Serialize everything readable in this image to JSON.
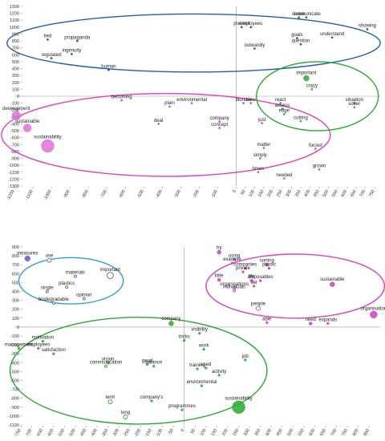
{
  "chart_data": [
    {
      "type": "scatter",
      "xlim": [
        -1200,
        780
      ],
      "ylim": [
        -1300,
        1300
      ],
      "xticks": [
        -1200,
        -1100,
        -1000,
        -900,
        -800,
        -700,
        -600,
        -500,
        -400,
        -300,
        -200,
        -100,
        0,
        50,
        100,
        150,
        200,
        250,
        300,
        350,
        400,
        450,
        500,
        550,
        600,
        650,
        700,
        750
      ],
      "yticks": [
        1300,
        1200,
        1100,
        1000,
        900,
        800,
        700,
        600,
        500,
        400,
        300,
        200,
        100,
        0,
        -100,
        -200,
        -300,
        -400,
        -500,
        -600,
        -700,
        -800,
        -900,
        -1000,
        -1100,
        -1200,
        -1300
      ],
      "grid": false,
      "clusters": [
        {
          "color": "#1f5faa",
          "cx": -230,
          "cy": 770,
          "rx": 1010,
          "ry": 420
        },
        {
          "color": "#e040c0",
          "cx": -380,
          "cy": -560,
          "rx": 890,
          "ry": 600
        },
        {
          "color": "#2aa830",
          "cx": 440,
          "cy": 0,
          "rx": 330,
          "ry": 500
        }
      ],
      "points": [
        {
          "label": "tied",
          "x": -1020,
          "y": 820,
          "r": 1.2,
          "color": "#1f3f8f"
        },
        {
          "label": "regulated",
          "x": -1000,
          "y": 550,
          "r": 1.2,
          "color": "#1f3f8f"
        },
        {
          "label": "propaganda",
          "x": -860,
          "y": 800,
          "r": 1.2,
          "color": "#1f3f8f"
        },
        {
          "label": "ingenuity",
          "x": -890,
          "y": 610,
          "r": 1.2,
          "color": "#1f3f8f"
        },
        {
          "label": "human",
          "x": -690,
          "y": 380,
          "r": 1.2,
          "color": "#1f3f8f"
        },
        {
          "label": "present",
          "x": 30,
          "y": 1000,
          "r": 1.2,
          "color": "#1f3f8f"
        },
        {
          "label": "employees",
          "x": 80,
          "y": 1000,
          "r": 1.2,
          "color": "#1f3f8f"
        },
        {
          "label": "outwardly",
          "x": 100,
          "y": 690,
          "r": 1.2,
          "color": "#1f3f8f"
        },
        {
          "label": "issue",
          "x": 340,
          "y": 1140,
          "r": 1.2,
          "color": "#1f3f8f"
        },
        {
          "label": "communicate",
          "x": 380,
          "y": 1140,
          "r": 1.2,
          "color": "#1f3f8f"
        },
        {
          "label": "goals",
          "x": 330,
          "y": 840,
          "r": 1.2,
          "color": "#1f3f8f"
        },
        {
          "label": "question",
          "x": 350,
          "y": 750,
          "r": 1.2,
          "color": "#1f3f8f"
        },
        {
          "label": "understand",
          "x": 520,
          "y": 850,
          "r": 1.2,
          "color": "#1f3f8f"
        },
        {
          "label": "showing",
          "x": 710,
          "y": 970,
          "r": 1.2,
          "color": "#1f3f8f"
        },
        {
          "label": "becoming",
          "x": -620,
          "y": -60,
          "r": 1.2,
          "color": "#d23cc0"
        },
        {
          "label": "plain",
          "x": -360,
          "y": -150,
          "r": 1.2,
          "color": "#d23cc0"
        },
        {
          "label": "environmental",
          "x": -240,
          "y": -100,
          "r": 1.2,
          "color": "#d23cc0"
        },
        {
          "label": "deal",
          "x": -420,
          "y": -400,
          "r": 1.2,
          "color": "#d23cc0"
        },
        {
          "label": "company",
          "x": -90,
          "y": -370,
          "r": 1.2,
          "color": "#d23cc0"
        },
        {
          "label": "concept",
          "x": -90,
          "y": -460,
          "r": 1.2,
          "color": "#d23cc0"
        },
        {
          "label": "blunder",
          "x": 40,
          "y": -100,
          "r": 1.2,
          "color": "#d23cc0"
        },
        {
          "label": "view",
          "x": 80,
          "y": -100,
          "r": 1.2,
          "color": "#d23cc0"
        },
        {
          "label": "just",
          "x": 140,
          "y": -390,
          "r": 1.2,
          "color": "#d23cc0"
        },
        {
          "label": "matter",
          "x": 150,
          "y": -750,
          "r": 1.2,
          "color": "#d23cc0"
        },
        {
          "label": "simply",
          "x": 130,
          "y": -900,
          "r": 1.2,
          "color": "#d23cc0"
        },
        {
          "label": "times",
          "x": 120,
          "y": -1100,
          "r": 1.2,
          "color": "#d23cc0"
        },
        {
          "label": "needed",
          "x": 260,
          "y": -1190,
          "r": 1.2,
          "color": "#d23cc0"
        },
        {
          "label": "forced",
          "x": 430,
          "y": -760,
          "r": 1.2,
          "color": "#d23cc0"
        },
        {
          "label": "grown",
          "x": 450,
          "y": -1060,
          "r": 1.2,
          "color": "#d23cc0"
        },
        {
          "label": "development",
          "x": -1190,
          "y": -280,
          "r": 5.5,
          "color": "#e070d8"
        },
        {
          "label": "sustainable",
          "x": -1130,
          "y": -460,
          "r": 5,
          "color": "#e070d8"
        },
        {
          "label": "sustainability",
          "x": -1020,
          "y": -720,
          "r": 8,
          "color": "#e070d8"
        },
        {
          "label": "important",
          "x": 380,
          "y": 260,
          "r": 3.5,
          "color": "#2aa830"
        },
        {
          "label": "crazy",
          "x": 410,
          "y": 100,
          "r": 1.2,
          "color": "#2aa830"
        },
        {
          "label": "react",
          "x": 240,
          "y": -100,
          "r": 1.2,
          "color": "#2aa830"
        },
        {
          "label": "assess",
          "x": 250,
          "y": -180,
          "r": 1.2,
          "color": "#2aa830"
        },
        {
          "label": "edge",
          "x": 260,
          "y": -260,
          "r": 1.2,
          "color": "#2aa830"
        },
        {
          "label": "cutting",
          "x": 350,
          "y": -360,
          "r": 1.2,
          "color": "#2aa830"
        },
        {
          "label": "situation",
          "x": 640,
          "y": -100,
          "r": 1.2,
          "color": "#2aa830"
        },
        {
          "label": "sober",
          "x": 640,
          "y": -160,
          "r": 1.2,
          "color": "#2aa830"
        }
      ]
    },
    {
      "type": "scatter",
      "xlim": [
        -780,
        900
      ],
      "ylim": [
        -1100,
        900
      ],
      "xticks": [
        -750,
        -700,
        -650,
        -600,
        -550,
        -500,
        -450,
        -400,
        -350,
        -300,
        -250,
        -200,
        -150,
        -100,
        -50,
        0,
        50,
        100,
        150,
        200,
        250,
        300,
        350,
        400,
        450,
        500,
        550,
        600,
        650,
        700,
        750,
        800,
        850
      ],
      "yticks": [
        900,
        800,
        700,
        600,
        500,
        400,
        300,
        200,
        100,
        0,
        -100,
        -200,
        -300,
        -400,
        -500,
        -600,
        -700,
        -800,
        -900,
        -1000,
        -1100
      ],
      "grid": false,
      "clusters": [
        {
          "color": "#2aa0d8",
          "cx": -520,
          "cy": 520,
          "rx": 240,
          "ry": 260
        },
        {
          "color": "#e040c0",
          "cx": 510,
          "cy": 460,
          "rx": 410,
          "ry": 360
        },
        {
          "color": "#2aa830",
          "cx": -210,
          "cy": -490,
          "rx": 590,
          "ry": 600
        }
      ],
      "points": [
        {
          "label": "measures",
          "x": -720,
          "y": 770,
          "r": 3.5,
          "color": "#6a5ad0",
          "hollow": false
        },
        {
          "label": "use",
          "x": -620,
          "y": 750,
          "r": 2.5,
          "color": "#6a5ad0",
          "hollow": true
        },
        {
          "label": "materials",
          "x": -500,
          "y": 570,
          "r": 1.5,
          "color": "#6a5ad0",
          "hollow": true
        },
        {
          "label": "important",
          "x": -340,
          "y": 580,
          "r": 4,
          "color": "#6a5ad0",
          "hollow": true
        },
        {
          "label": "plastics",
          "x": -540,
          "y": 450,
          "r": 1.5,
          "color": "#6a5ad0",
          "hollow": true
        },
        {
          "label": "single",
          "x": -630,
          "y": 400,
          "r": 1.5,
          "color": "#6a5ad0",
          "hollow": true
        },
        {
          "label": "opinion",
          "x": -460,
          "y": 320,
          "r": 1.5,
          "color": "#6a5ad0",
          "hollow": true
        },
        {
          "label": "biodegradable",
          "x": -600,
          "y": 270,
          "r": 1.5,
          "color": "#6a5ad0",
          "hollow": true
        },
        {
          "label": "try",
          "x": 160,
          "y": 840,
          "r": 2.5,
          "color": "#d23cc0",
          "hollow": false
        },
        {
          "label": "using",
          "x": 230,
          "y": 760,
          "r": 1.5,
          "color": "#d23cc0",
          "hollow": false
        },
        {
          "label": "example",
          "x": 220,
          "y": 720,
          "r": 1.5,
          "color": "#d23cc0",
          "hollow": false
        },
        {
          "label": "companies",
          "x": 280,
          "y": 660,
          "r": 1.5,
          "color": "#d23cc0",
          "hollow": false
        },
        {
          "label": "private",
          "x": 270,
          "y": 620,
          "r": 1.5,
          "color": "#d23cc0",
          "hollow": false
        },
        {
          "label": "sorting",
          "x": 380,
          "y": 700,
          "r": 2,
          "color": "#d23cc0",
          "hollow": false
        },
        {
          "label": "plastic",
          "x": 390,
          "y": 660,
          "r": 1.5,
          "color": "#d23cc0",
          "hollow": false
        },
        {
          "label": "little",
          "x": 160,
          "y": 530,
          "r": 2,
          "color": "#d23cc0",
          "hollow": false
        },
        {
          "label": "life",
          "x": 310,
          "y": 520,
          "r": 2,
          "color": "#d23cc0",
          "hollow": false
        },
        {
          "label": "disposables",
          "x": 350,
          "y": 520,
          "r": 1.5,
          "color": "#d23cc0",
          "hollow": false
        },
        {
          "label": "set",
          "x": 320,
          "y": 460,
          "r": 1.5,
          "color": "#d23cc0",
          "hollow": false
        },
        {
          "label": "organisations",
          "x": 230,
          "y": 440,
          "r": 1.5,
          "color": "#d23cc0",
          "hollow": true
        },
        {
          "label": "individuals",
          "x": 230,
          "y": 410,
          "r": 1.5,
          "color": "#d23cc0",
          "hollow": true
        },
        {
          "label": "sustainable",
          "x": 680,
          "y": 480,
          "r": 3,
          "color": "#d23cc0",
          "hollow": false
        },
        {
          "label": "people",
          "x": 340,
          "y": 210,
          "r": 2.5,
          "color": "#d23cc0",
          "hollow": true
        },
        {
          "label": "able",
          "x": 380,
          "y": 50,
          "r": 1.5,
          "color": "#d23cc0",
          "hollow": false
        },
        {
          "label": "need",
          "x": 580,
          "y": 40,
          "r": 2,
          "color": "#d23cc0",
          "hollow": false
        },
        {
          "label": "expands",
          "x": 660,
          "y": 40,
          "r": 1.5,
          "color": "#d23cc0",
          "hollow": false
        },
        {
          "label": "organisation",
          "x": 870,
          "y": 140,
          "r": 4.5,
          "color": "#d23cc0",
          "hollow": false
        },
        {
          "label": "management",
          "x": -760,
          "y": -240,
          "r": 1.5,
          "color": "#2aa830",
          "hollow": false
        },
        {
          "label": "motivation",
          "x": -650,
          "y": -160,
          "r": 1.5,
          "color": "#2aa830",
          "hollow": false
        },
        {
          "label": "employees",
          "x": -670,
          "y": -240,
          "r": 1.5,
          "color": "#2aa830",
          "hollow": false
        },
        {
          "label": "satisfaction",
          "x": -600,
          "y": -300,
          "r": 1.5,
          "color": "#2aa830",
          "hollow": false
        },
        {
          "label": "company",
          "x": -60,
          "y": 40,
          "r": 3,
          "color": "#2aa830",
          "hollow": false
        },
        {
          "label": "visibility",
          "x": 70,
          "y": -70,
          "r": 1.5,
          "color": "#2aa830",
          "hollow": false
        },
        {
          "label": "tricks",
          "x": 0,
          "y": -150,
          "r": 1.5,
          "color": "#2aa830",
          "hollow": false
        },
        {
          "label": "work",
          "x": 90,
          "y": -250,
          "r": 1.5,
          "color": "#2aa830",
          "hollow": false
        },
        {
          "label": "vision",
          "x": -350,
          "y": -400,
          "r": 1.5,
          "color": "#2aa830",
          "hollow": true
        },
        {
          "label": "communication",
          "x": -360,
          "y": -440,
          "r": 1.5,
          "color": "#2aa830",
          "hollow": true
        },
        {
          "label": "good",
          "x": -170,
          "y": -420,
          "r": 1.5,
          "color": "#2aa830",
          "hollow": false
        },
        {
          "label": "balance",
          "x": -140,
          "y": -440,
          "r": 1.5,
          "color": "#2aa830",
          "hollow": false
        },
        {
          "label": "training",
          "x": 60,
          "y": -470,
          "r": 1.5,
          "color": "#2aa830",
          "hollow": false
        },
        {
          "label": "used",
          "x": 100,
          "y": -460,
          "r": 1.5,
          "color": "#2aa830",
          "hollow": false
        },
        {
          "label": "activity",
          "x": 160,
          "y": -540,
          "r": 1.5,
          "color": "#2aa830",
          "hollow": false
        },
        {
          "label": "job",
          "x": 280,
          "y": -370,
          "r": 1.5,
          "color": "#2aa830",
          "hollow": false
        },
        {
          "label": "environmental",
          "x": 80,
          "y": -660,
          "r": 1.5,
          "color": "#2aa830",
          "hollow": false
        },
        {
          "label": "term",
          "x": -340,
          "y": -840,
          "r": 2.5,
          "color": "#2aa830",
          "hollow": true
        },
        {
          "label": "company's",
          "x": -150,
          "y": -830,
          "r": 1.5,
          "color": "#2aa830",
          "hollow": false
        },
        {
          "label": "long",
          "x": -270,
          "y": -1010,
          "r": 2.5,
          "color": "#2aa830",
          "hollow": true
        },
        {
          "label": "programmes",
          "x": -10,
          "y": -930,
          "r": 1.5,
          "color": "#2aa830",
          "hollow": false
        },
        {
          "label": "sustainability",
          "x": 250,
          "y": -900,
          "r": 8,
          "color": "#2aa830",
          "hollow": false
        }
      ]
    }
  ]
}
